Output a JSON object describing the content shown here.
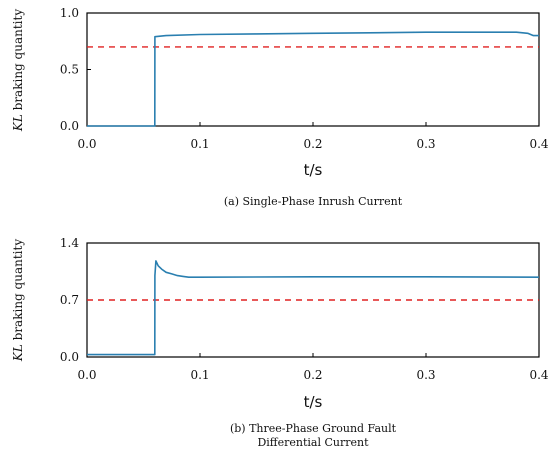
{
  "chart_data": [
    {
      "type": "line",
      "caption": "(a) Single-Phase Inrush Current",
      "xlabel": "t/s",
      "ylabel_italic": "KL",
      "ylabel_rest": " braking quantity",
      "xlim": [
        0,
        0.4
      ],
      "ylim": [
        0,
        1.0
      ],
      "xticks": [
        "0.0",
        "0.1",
        "0.2",
        "0.3",
        "0.4"
      ],
      "xtick_values": [
        0,
        0.1,
        0.2,
        0.3,
        0.4
      ],
      "yticks": [
        "0.0",
        "0.5",
        "1.0"
      ],
      "ytick_values": [
        0,
        0.5,
        1.0
      ],
      "threshold": 0.7,
      "series": [
        {
          "x": [
            0,
            0.06,
            0.0601,
            0.07,
            0.1,
            0.15,
            0.2,
            0.25,
            0.3,
            0.35,
            0.38,
            0.39,
            0.395,
            0.4
          ],
          "y": [
            0.0,
            0.0,
            0.79,
            0.8,
            0.81,
            0.815,
            0.82,
            0.825,
            0.83,
            0.83,
            0.83,
            0.82,
            0.8,
            0.8
          ]
        }
      ],
      "color": "#2a7fb0",
      "threshold_color": "#e02020"
    },
    {
      "type": "line",
      "caption_line1": "(b) Three-Phase Ground Fault",
      "caption_line2": "Differential Current",
      "xlabel": "t/s",
      "ylabel_italic": "KL",
      "ylabel_rest": " braking quantity",
      "xlim": [
        0,
        0.4
      ],
      "ylim": [
        0,
        1.4
      ],
      "xticks": [
        "0.0",
        "0.1",
        "0.2",
        "0.3",
        "0.4"
      ],
      "xtick_values": [
        0,
        0.1,
        0.2,
        0.3,
        0.4
      ],
      "yticks": [
        "0.0",
        "0.7",
        "1.4"
      ],
      "ytick_values": [
        0,
        0.7,
        1.4
      ],
      "threshold": 0.7,
      "series": [
        {
          "x": [
            0,
            0.06,
            0.0601,
            0.061,
            0.063,
            0.066,
            0.07,
            0.075,
            0.08,
            0.085,
            0.09,
            0.1,
            0.2,
            0.3,
            0.4
          ],
          "y": [
            0.03,
            0.03,
            1.0,
            1.18,
            1.12,
            1.08,
            1.04,
            1.02,
            1.0,
            0.99,
            0.98,
            0.98,
            0.985,
            0.985,
            0.98
          ]
        }
      ],
      "color": "#2a7fb0",
      "threshold_color": "#e02020"
    }
  ]
}
